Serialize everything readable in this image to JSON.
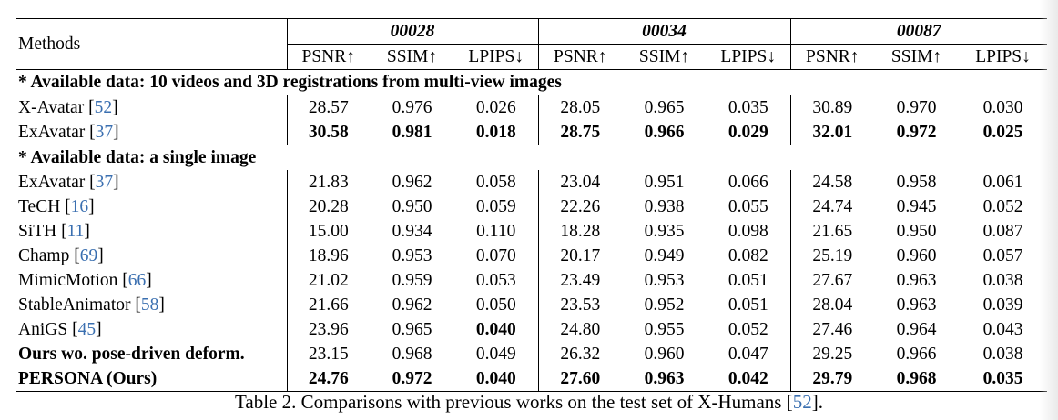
{
  "table": {
    "methods_header": "Methods",
    "groups": [
      "00028",
      "00034",
      "00087"
    ],
    "metrics": [
      "PSNR↑",
      "SSIM↑",
      "LPIPS↓"
    ],
    "sections": [
      {
        "title": "* Available data: 10 videos and 3D registrations from multi-view images",
        "rows": [
          {
            "name": "X-Avatar",
            "ref": "52",
            "values": [
              "28.57",
              "0.976",
              "0.026",
              "28.05",
              "0.965",
              "0.035",
              "30.89",
              "0.970",
              "0.030"
            ]
          },
          {
            "name": "ExAvatar",
            "ref": "37",
            "values": [
              "30.58",
              "0.981",
              "0.018",
              "28.75",
              "0.966",
              "0.029",
              "32.01",
              "0.972",
              "0.025"
            ]
          }
        ]
      },
      {
        "title": "* Available data: a single image",
        "rows": [
          {
            "name": "ExAvatar",
            "ref": "37",
            "values": [
              "21.83",
              "0.962",
              "0.058",
              "23.04",
              "0.951",
              "0.066",
              "24.58",
              "0.958",
              "0.061"
            ]
          },
          {
            "name": "TeCH",
            "ref": "16",
            "values": [
              "20.28",
              "0.950",
              "0.059",
              "22.26",
              "0.938",
              "0.055",
              "24.74",
              "0.945",
              "0.052"
            ]
          },
          {
            "name": "SiTH",
            "ref": "11",
            "values": [
              "15.00",
              "0.934",
              "0.110",
              "18.28",
              "0.935",
              "0.098",
              "21.65",
              "0.950",
              "0.087"
            ]
          },
          {
            "name": "Champ",
            "ref": "69",
            "values": [
              "18.96",
              "0.953",
              "0.070",
              "20.17",
              "0.949",
              "0.082",
              "25.19",
              "0.960",
              "0.057"
            ]
          },
          {
            "name": "MimicMotion",
            "ref": "66",
            "values": [
              "21.02",
              "0.959",
              "0.053",
              "23.49",
              "0.953",
              "0.051",
              "27.67",
              "0.963",
              "0.038"
            ]
          },
          {
            "name": "StableAnimator",
            "ref": "58",
            "values": [
              "21.66",
              "0.962",
              "0.050",
              "23.53",
              "0.952",
              "0.051",
              "28.04",
              "0.963",
              "0.039"
            ]
          },
          {
            "name": "AniGS",
            "ref": "45",
            "values": [
              "23.96",
              "0.965",
              "0.040",
              "24.80",
              "0.955",
              "0.052",
              "27.46",
              "0.964",
              "0.043"
            ]
          },
          {
            "name": "Ours wo. pose-driven deform.",
            "ref": "",
            "values": [
              "23.15",
              "0.968",
              "0.049",
              "26.32",
              "0.960",
              "0.047",
              "29.25",
              "0.966",
              "0.038"
            ]
          },
          {
            "name": "PERSONA (Ours)",
            "ref": "",
            "values": [
              "24.76",
              "0.972",
              "0.040",
              "27.60",
              "0.963",
              "0.042",
              "29.79",
              "0.968",
              "0.035"
            ]
          }
        ]
      }
    ]
  },
  "caption": {
    "text": "Table 2. Comparisons with previous works on the test set of X-Humans [",
    "ref": "52",
    "end": "]."
  }
}
